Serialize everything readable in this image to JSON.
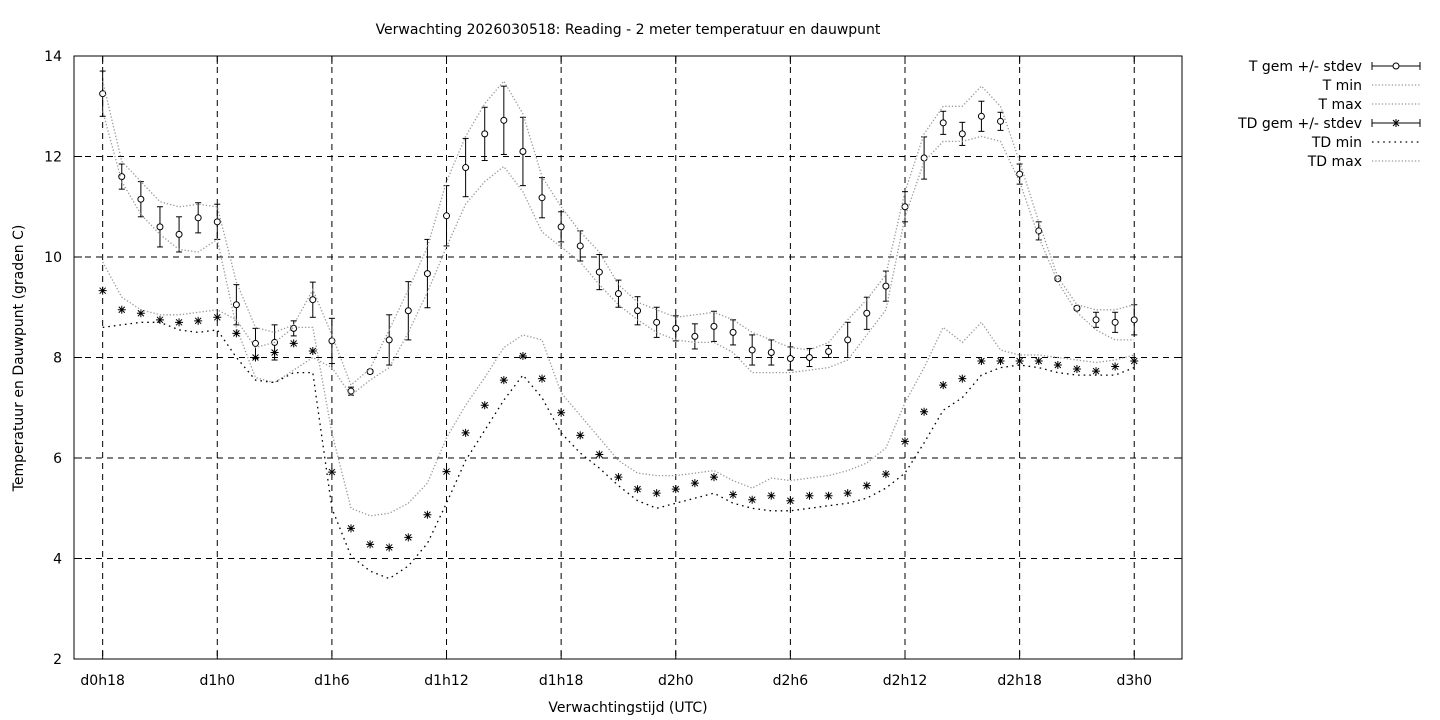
{
  "chart_data": {
    "type": "line",
    "title": "Verwachting 2026030518: Reading - 2 meter temperatuur en dauwpunt",
    "xlabel": "Verwachtingstijd (UTC)",
    "ylabel": "Temperatuur en Dauwpunt (graden C)",
    "ylim": [
      2,
      14
    ],
    "yticks": [
      2,
      4,
      6,
      8,
      10,
      12,
      14
    ],
    "xlim": [
      -1.5,
      56.5
    ],
    "xticks": [
      {
        "x": 0,
        "label": "d0h18"
      },
      {
        "x": 6,
        "label": "d1h0"
      },
      {
        "x": 12,
        "label": "d1h6"
      },
      {
        "x": 18,
        "label": "d1h12"
      },
      {
        "x": 24,
        "label": "d1h18"
      },
      {
        "x": 30,
        "label": "d2h0"
      },
      {
        "x": 36,
        "label": "d2h6"
      },
      {
        "x": 42,
        "label": "d2h12"
      },
      {
        "x": 48,
        "label": "d2h18"
      },
      {
        "x": 54,
        "label": "d3h0"
      }
    ],
    "x_unit_note": "",
    "grid": true,
    "legend_position": "outside-top-right",
    "x": [
      0,
      1,
      2,
      3,
      4,
      5,
      6,
      7,
      8,
      9,
      10,
      11,
      12,
      13,
      14,
      15,
      16,
      17,
      18,
      19,
      20,
      21,
      22,
      23,
      24,
      25,
      26,
      27,
      28,
      29,
      30,
      31,
      32,
      33,
      34,
      35,
      36,
      37,
      38,
      39,
      40,
      41,
      42,
      43,
      44,
      45,
      46,
      47,
      48,
      49,
      50,
      51,
      52,
      53,
      54
    ],
    "series": [
      {
        "name": "T gem +/- stdev",
        "style": "errorbars-circle",
        "values": [
          13.25,
          11.6,
          11.15,
          10.6,
          10.45,
          10.78,
          10.7,
          9.05,
          8.28,
          8.3,
          8.58,
          9.15,
          8.33,
          7.33,
          7.72,
          8.35,
          8.93,
          9.67,
          10.82,
          11.78,
          12.45,
          12.72,
          12.1,
          11.18,
          10.6,
          10.22,
          9.7,
          9.27,
          8.93,
          8.7,
          8.58,
          8.42,
          8.62,
          8.5,
          8.15,
          8.1,
          7.98,
          8.0,
          8.12,
          8.35,
          8.88,
          9.42,
          11.0,
          11.97,
          12.67,
          12.45,
          12.8,
          12.7,
          11.65,
          10.52,
          9.57,
          8.98,
          8.75,
          8.7,
          8.75
        ],
        "stdev": [
          0.45,
          0.25,
          0.35,
          0.4,
          0.35,
          0.3,
          0.35,
          0.4,
          0.3,
          0.35,
          0.15,
          0.35,
          0.45,
          0.08,
          0.04,
          0.5,
          0.58,
          0.68,
          0.6,
          0.58,
          0.53,
          0.68,
          0.68,
          0.4,
          0.3,
          0.3,
          0.35,
          0.27,
          0.28,
          0.3,
          0.25,
          0.25,
          0.3,
          0.25,
          0.3,
          0.25,
          0.23,
          0.18,
          0.12,
          0.35,
          0.32,
          0.3,
          0.3,
          0.42,
          0.23,
          0.23,
          0.3,
          0.18,
          0.2,
          0.18,
          0.04,
          0.04,
          0.15,
          0.2,
          0.3
        ]
      },
      {
        "name": "T min",
        "style": "dotted",
        "values": [
          12.9,
          11.5,
          10.85,
          10.45,
          10.15,
          10.1,
          10.35,
          8.6,
          7.6,
          7.5,
          7.75,
          8.0,
          7.8,
          7.25,
          7.55,
          7.8,
          8.5,
          9.3,
          10.2,
          11.05,
          11.5,
          11.8,
          11.3,
          10.5,
          10.2,
          9.9,
          9.45,
          9.05,
          8.75,
          8.5,
          8.35,
          8.3,
          8.3,
          8.1,
          7.7,
          7.7,
          7.7,
          7.75,
          7.8,
          7.95,
          8.45,
          8.95,
          10.8,
          11.9,
          12.3,
          12.3,
          12.4,
          12.3,
          11.5,
          10.4,
          9.5,
          8.9,
          8.55,
          8.35,
          8.35
        ]
      },
      {
        "name": "T max",
        "style": "dotted",
        "values": [
          13.5,
          11.9,
          11.5,
          11.1,
          11.0,
          11.05,
          11.0,
          9.5,
          8.6,
          8.5,
          8.65,
          9.35,
          8.45,
          7.45,
          7.78,
          8.55,
          9.35,
          10.2,
          11.5,
          12.4,
          13.05,
          13.5,
          12.85,
          11.6,
          11.0,
          10.5,
          10.1,
          9.45,
          9.1,
          8.95,
          8.8,
          8.85,
          8.9,
          8.75,
          8.5,
          8.35,
          8.2,
          8.15,
          8.3,
          8.75,
          9.15,
          9.65,
          11.3,
          12.45,
          13.0,
          13.0,
          13.4,
          13.0,
          11.9,
          10.7,
          9.6,
          9.05,
          8.95,
          8.95,
          9.05
        ]
      },
      {
        "name": "TD gem +/- stdev",
        "style": "errorbars-star",
        "values": [
          9.33,
          8.95,
          8.88,
          8.75,
          8.7,
          8.73,
          8.8,
          8.48,
          8.0,
          8.1,
          8.28,
          8.13,
          5.72,
          4.6,
          4.28,
          4.22,
          4.42,
          4.87,
          5.73,
          6.5,
          7.05,
          7.55,
          8.03,
          7.58,
          6.9,
          6.45,
          6.07,
          5.62,
          5.38,
          5.3,
          5.38,
          5.5,
          5.62,
          5.27,
          5.17,
          5.25,
          5.15,
          5.25,
          5.25,
          5.3,
          5.45,
          5.68,
          6.33,
          6.92,
          7.45,
          7.58,
          7.93,
          7.93,
          7.93,
          7.93,
          7.85,
          7.77,
          7.73,
          7.82,
          7.93
        ]
      },
      {
        "name": "TD min",
        "style": "dotted-sparse",
        "values": [
          8.6,
          8.65,
          8.7,
          8.7,
          8.55,
          8.5,
          8.55,
          8.0,
          7.55,
          7.5,
          7.7,
          7.7,
          5.0,
          4.05,
          3.75,
          3.6,
          3.85,
          4.3,
          5.1,
          5.95,
          6.55,
          7.15,
          7.65,
          7.2,
          6.5,
          6.1,
          5.8,
          5.45,
          5.15,
          5.0,
          5.1,
          5.2,
          5.3,
          5.1,
          5.0,
          4.95,
          4.95,
          5.0,
          5.05,
          5.1,
          5.2,
          5.4,
          5.7,
          6.3,
          6.95,
          7.2,
          7.65,
          7.8,
          7.85,
          7.8,
          7.7,
          7.65,
          7.65,
          7.65,
          7.8
        ]
      },
      {
        "name": "TD max",
        "style": "dotted",
        "values": [
          9.9,
          9.2,
          8.95,
          8.85,
          8.85,
          8.9,
          8.95,
          8.75,
          8.2,
          8.3,
          8.6,
          8.6,
          6.5,
          5.0,
          4.85,
          4.9,
          5.1,
          5.5,
          6.4,
          7.05,
          7.6,
          8.2,
          8.45,
          8.35,
          7.3,
          6.85,
          6.4,
          5.95,
          5.7,
          5.65,
          5.65,
          5.7,
          5.75,
          5.55,
          5.4,
          5.6,
          5.55,
          5.6,
          5.65,
          5.75,
          5.9,
          6.2,
          7.1,
          7.8,
          8.6,
          8.3,
          8.7,
          8.15,
          8.05,
          8.05,
          8.0,
          7.95,
          7.9,
          7.95,
          8.05
        ]
      }
    ]
  }
}
